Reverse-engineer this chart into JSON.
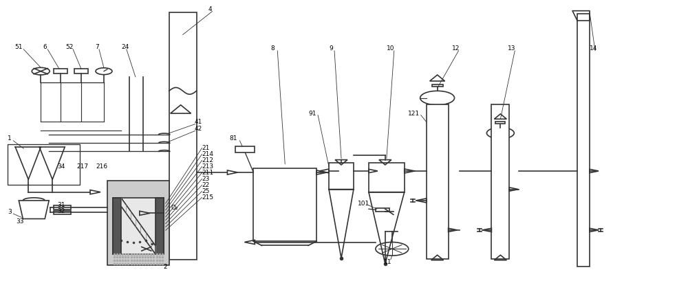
{
  "background": "#ffffff",
  "line_color": "#333333",
  "lw": 1.2,
  "fig_width": 10.0,
  "fig_height": 4.12
}
